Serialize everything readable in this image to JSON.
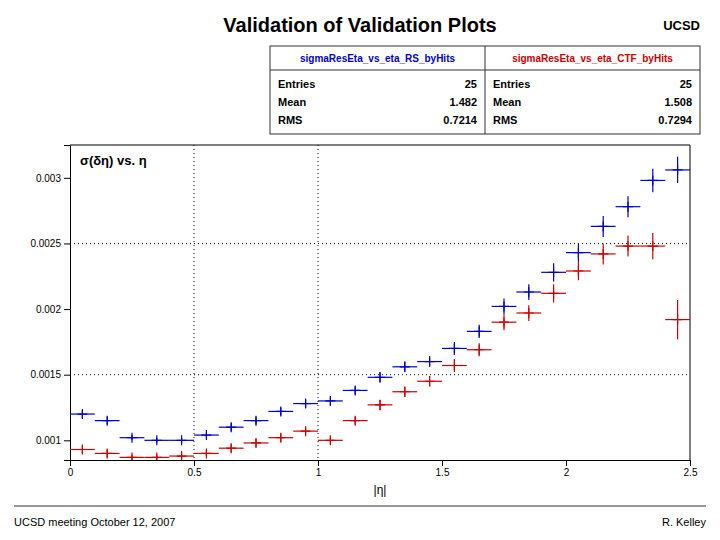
{
  "chart_data": {
    "type": "scatter",
    "marker": "plus",
    "title": "Validation of Validation Plots",
    "x_label": "|η|",
    "annotations": [
      "σ(δη) vs. η",
      "UCSD meeting October 12, 2007",
      "R. Kelley",
      "UCSD"
    ],
    "xlim": [
      0,
      2.5
    ],
    "ylim": [
      0.00085,
      0.00325
    ],
    "xticks": [
      0,
      0.5,
      1,
      1.5,
      2,
      2.5
    ],
    "yticks": [
      0.001,
      0.0015,
      0.002,
      0.0025,
      0.003
    ],
    "grid": false,
    "vlines": [
      0.5,
      1.0
    ],
    "hlines": [
      0.0015,
      0.0025
    ],
    "stat_labels": [
      "Entries",
      "Mean",
      "RMS"
    ],
    "series": [
      {
        "name": "sigmaResEta_vs_eta_RS_byHits",
        "color": "#0000cc",
        "stats": [
          25,
          1.482,
          0.7214
        ],
        "x": [
          0.05,
          0.15,
          0.25,
          0.35,
          0.45,
          0.55,
          0.65,
          0.75,
          0.85,
          0.95,
          1.05,
          1.15,
          1.25,
          1.35,
          1.45,
          1.55,
          1.65,
          1.75,
          1.85,
          1.95,
          2.05,
          2.15,
          2.25,
          2.35,
          2.45
        ],
        "values": [
          0.0012,
          0.00115,
          0.00102,
          0.001,
          0.001,
          0.00104,
          0.0011,
          0.00115,
          0.00122,
          0.00128,
          0.0013,
          0.00138,
          0.00148,
          0.00156,
          0.0016,
          0.0017,
          0.00183,
          0.00202,
          0.00213,
          0.00228,
          0.00243,
          0.00263,
          0.00278,
          0.00298,
          0.00306
        ],
        "xerr": [
          0.05,
          0.05,
          0.05,
          0.05,
          0.05,
          0.05,
          0.05,
          0.05,
          0.05,
          0.05,
          0.05,
          0.05,
          0.05,
          0.05,
          0.05,
          0.05,
          0.05,
          0.05,
          0.05,
          0.05,
          0.05,
          0.05,
          0.05,
          0.05,
          0.05
        ],
        "yerr": [
          3e-05,
          3e-05,
          2e-05,
          2e-05,
          2e-05,
          2e-05,
          3e-05,
          3e-05,
          3e-05,
          3e-05,
          3e-05,
          3e-05,
          4e-05,
          4e-05,
          4e-05,
          5e-05,
          5e-05,
          6e-05,
          6e-05,
          7e-05,
          7e-05,
          8e-05,
          8e-05,
          9e-05,
          0.0001
        ]
      },
      {
        "name": "sigmaResEta_vs_eta_CTF_byHits",
        "color": "#cc0000",
        "stats": [
          25,
          1.508,
          0.7294
        ],
        "x": [
          0.05,
          0.15,
          0.25,
          0.35,
          0.45,
          0.55,
          0.65,
          0.75,
          0.85,
          0.95,
          1.05,
          1.15,
          1.25,
          1.35,
          1.45,
          1.55,
          1.65,
          1.75,
          1.85,
          1.95,
          2.05,
          2.15,
          2.25,
          2.35,
          2.45
        ],
        "values": [
          0.00093,
          0.0009,
          0.00087,
          0.00087,
          0.00088,
          0.0009,
          0.00094,
          0.00098,
          0.00102,
          0.00107,
          0.001,
          0.00115,
          0.00127,
          0.00137,
          0.00145,
          0.00157,
          0.00169,
          0.0019,
          0.00197,
          0.00212,
          0.00229,
          0.00242,
          0.00248,
          0.00248,
          0.00192
        ],
        "xerr": [
          0.05,
          0.05,
          0.05,
          0.05,
          0.05,
          0.05,
          0.05,
          0.05,
          0.05,
          0.05,
          0.05,
          0.05,
          0.05,
          0.05,
          0.05,
          0.05,
          0.05,
          0.05,
          0.05,
          0.05,
          0.05,
          0.05,
          0.05,
          0.05,
          0.05
        ],
        "yerr": [
          3e-05,
          3e-05,
          2e-05,
          2e-05,
          2e-05,
          2e-05,
          3e-05,
          3e-05,
          3e-05,
          3e-05,
          3e-05,
          3e-05,
          4e-05,
          4e-05,
          4e-05,
          5e-05,
          5e-05,
          6e-05,
          6e-05,
          7e-05,
          7e-05,
          8e-05,
          8e-05,
          0.0001,
          0.00015
        ]
      }
    ]
  }
}
